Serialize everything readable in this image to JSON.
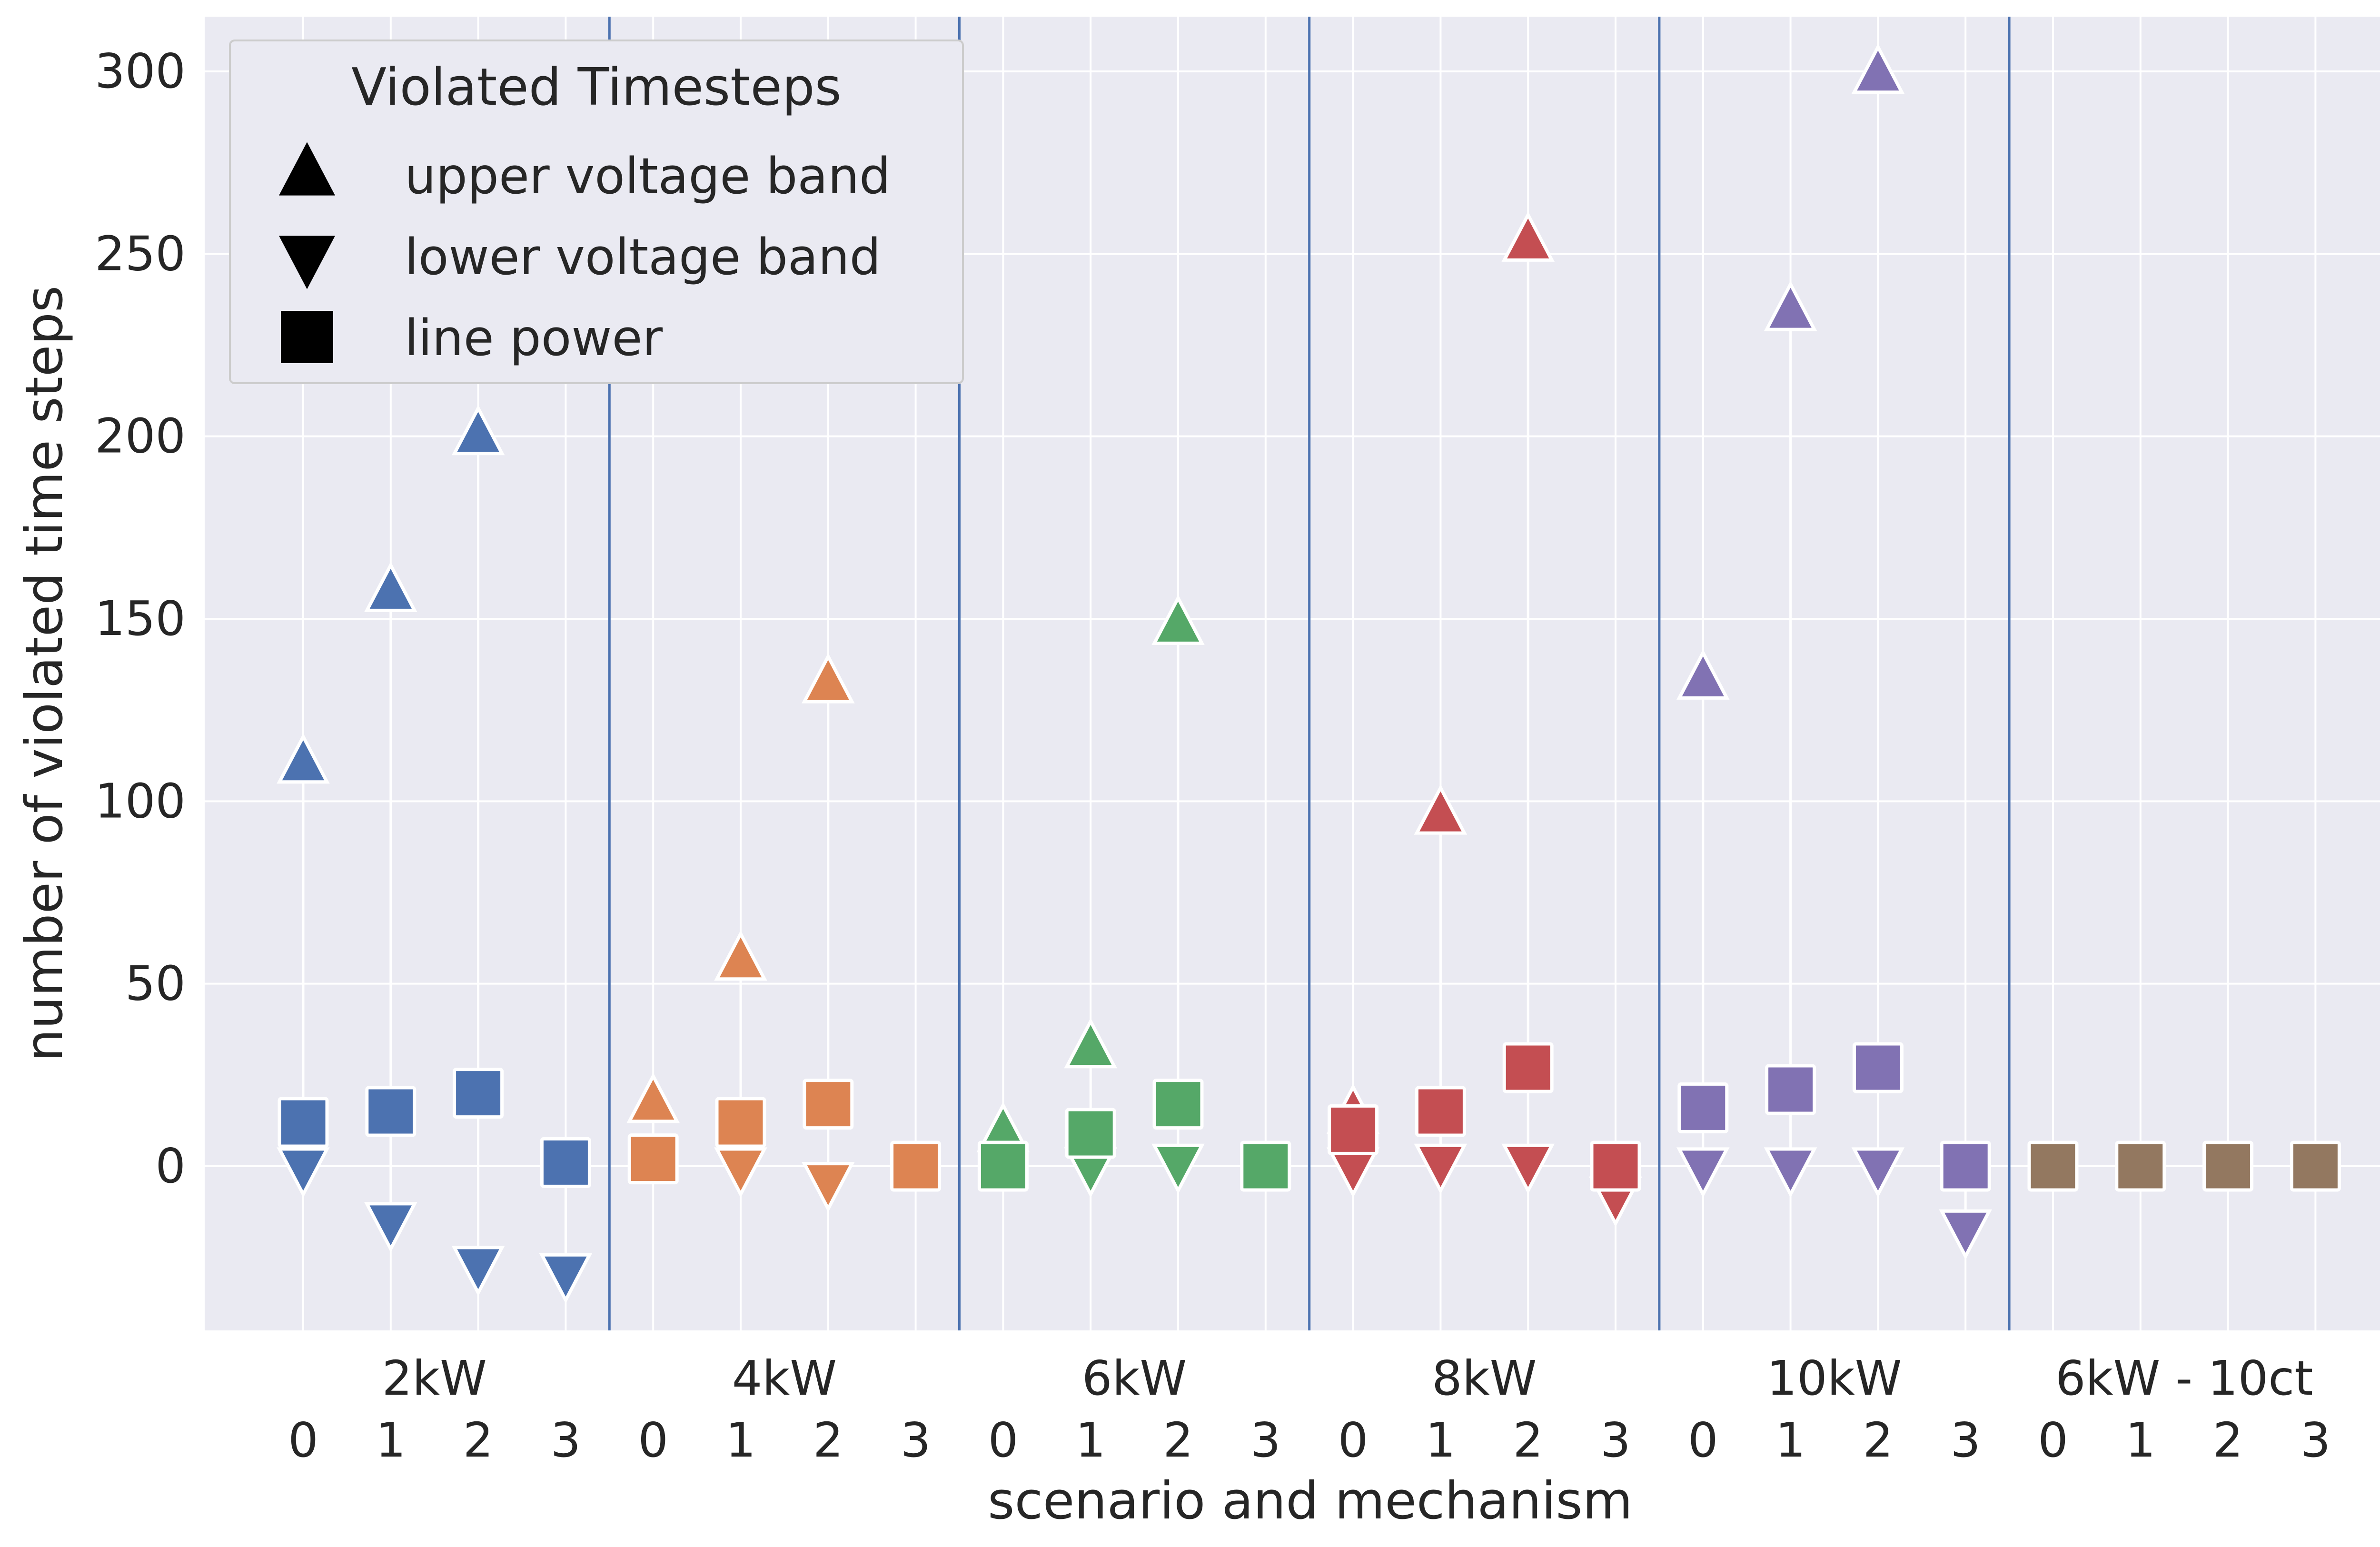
{
  "chart_data": {
    "type": "scatter",
    "xlabel": "scenario and mechanism",
    "ylabel": "number of violated time steps",
    "ylim": [
      -45,
      315
    ],
    "yticks": [
      0,
      50,
      100,
      150,
      200,
      250,
      300
    ],
    "grid": true,
    "legend": {
      "title": "Violated Timesteps",
      "placement": "top-left",
      "entries": [
        {
          "marker": "triangle-up",
          "label": "upper voltage band"
        },
        {
          "marker": "triangle-down",
          "label": "lower voltage band"
        },
        {
          "marker": "square",
          "label": "line power"
        }
      ]
    },
    "mechanisms": [
      "0",
      "1",
      "2",
      "3"
    ],
    "groups": [
      {
        "name": "2kW",
        "color": "#4c72b0",
        "upper": [
          110,
          157,
          200,
          null
        ],
        "lower": [
          0,
          -15,
          -27,
          -29
        ],
        "line": [
          12,
          15,
          20,
          1
        ]
      },
      {
        "name": "4kW",
        "color": "#dd8452",
        "upper": [
          17,
          56,
          132,
          null
        ],
        "lower": [
          null,
          0,
          -4,
          null
        ],
        "line": [
          2,
          12,
          17,
          0
        ]
      },
      {
        "name": "6kW",
        "color": "#55a868",
        "upper": [
          9,
          32,
          148,
          null
        ],
        "lower": [
          null,
          0,
          1,
          null
        ],
        "line": [
          0,
          9,
          17,
          0
        ]
      },
      {
        "name": "8kW",
        "color": "#c44e52",
        "upper": [
          14,
          96,
          253,
          null
        ],
        "lower": [
          0,
          1,
          1,
          -8
        ],
        "line": [
          10,
          15,
          27,
          0
        ]
      },
      {
        "name": "10kW",
        "color": "#8172b3",
        "upper": [
          133,
          234,
          299,
          null
        ],
        "lower": [
          0,
          0,
          0,
          -17
        ],
        "line": [
          16,
          21,
          27,
          0
        ]
      },
      {
        "name": "6kW - 10ct",
        "color": "#937860",
        "upper": [
          null,
          null,
          null,
          null
        ],
        "lower": [
          null,
          null,
          null,
          null
        ],
        "line": [
          0,
          0,
          0,
          0
        ]
      }
    ],
    "separator_color": "#4c72b0"
  }
}
